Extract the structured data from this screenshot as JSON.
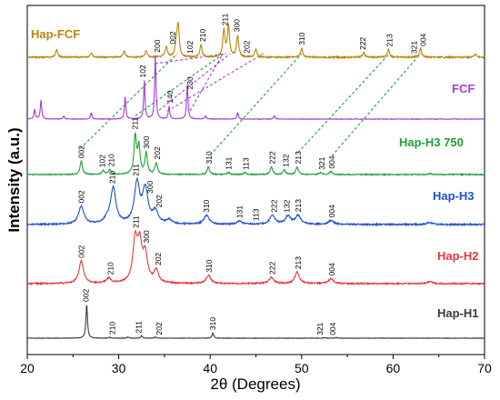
{
  "chart_data": {
    "type": "line",
    "title": "",
    "xlabel": "2θ (Degrees)",
    "ylabel": "Intensity (a.u.)",
    "xlim": [
      20,
      70
    ],
    "xticks": [
      20,
      30,
      40,
      50,
      60,
      70
    ],
    "y_ticks_shown": false,
    "grid": false,
    "legend": "none (series labels printed beside each trace)",
    "series": [
      {
        "name": "Hap-FCF",
        "color": "#b8860b",
        "peaks": [
          {
            "x": 23.2,
            "h": 0.25
          },
          {
            "x": 27.0,
            "h": 0.15
          },
          {
            "x": 30.6,
            "h": 0.2
          },
          {
            "x": 33.0,
            "h": 0.2
          },
          {
            "x": 35.2,
            "h": 0.35
          },
          {
            "x": 36.3,
            "h": 0.4
          },
          {
            "x": 36.5,
            "h": 1.0
          },
          {
            "x": 39.0,
            "h": 0.4
          },
          {
            "x": 41.5,
            "h": 0.85
          },
          {
            "x": 42.0,
            "h": 1.0
          },
          {
            "x": 43.0,
            "h": 0.7
          },
          {
            "x": 45.0,
            "h": 0.25
          },
          {
            "x": 50.0,
            "h": 0.3
          },
          {
            "x": 56.8,
            "h": 0.15
          },
          {
            "x": 59.5,
            "h": 0.25
          },
          {
            "x": 63.0,
            "h": 0.3
          },
          {
            "x": 69.0,
            "h": 0.1
          }
        ],
        "peak_labels": [
          {
            "text": "002",
            "x": 35.9
          },
          {
            "text": "102",
            "x": 37.8
          },
          {
            "text": "210",
            "x": 39.2
          },
          {
            "text": "211",
            "x": 41.6
          },
          {
            "text": "300",
            "x": 42.9
          },
          {
            "text": "202",
            "x": 44.0
          },
          {
            "text": "310",
            "x": 50.0
          },
          {
            "text": "222",
            "x": 56.7
          },
          {
            "text": "213",
            "x": 59.6
          },
          {
            "text": "321",
            "x": 62.3
          },
          {
            "text": "004",
            "x": 63.3
          }
        ]
      },
      {
        "name": "FCF",
        "color": "#a43dd8",
        "peaks": [
          {
            "x": 20.8,
            "h": 0.15
          },
          {
            "x": 21.5,
            "h": 0.3
          },
          {
            "x": 24.0,
            "h": 0.05
          },
          {
            "x": 27.0,
            "h": 0.1
          },
          {
            "x": 30.7,
            "h": 0.35
          },
          {
            "x": 32.8,
            "h": 0.6
          },
          {
            "x": 34.0,
            "h": 1.0
          },
          {
            "x": 35.5,
            "h": 0.2
          },
          {
            "x": 37.5,
            "h": 0.55
          },
          {
            "x": 39.5,
            "h": 0.05
          },
          {
            "x": 43.0,
            "h": 0.1
          },
          {
            "x": 47.0,
            "h": 0.05
          }
        ],
        "peak_labels": [
          {
            "text": "102",
            "x": 32.6
          },
          {
            "text": "200",
            "x": 34.2
          },
          {
            "text": "140",
            "x": 35.6
          },
          {
            "text": "230",
            "x": 37.8
          }
        ]
      },
      {
        "name": "Hap-H3 750",
        "color": "#1e9e3a",
        "peaks": [
          {
            "x": 25.9,
            "h": 0.35
          },
          {
            "x": 28.3,
            "h": 0.1
          },
          {
            "x": 29.0,
            "h": 0.12
          },
          {
            "x": 31.8,
            "h": 1.0
          },
          {
            "x": 32.2,
            "h": 0.7
          },
          {
            "x": 33.0,
            "h": 0.55
          },
          {
            "x": 34.1,
            "h": 0.3
          },
          {
            "x": 39.8,
            "h": 0.2
          },
          {
            "x": 42.0,
            "h": 0.05
          },
          {
            "x": 43.8,
            "h": 0.05
          },
          {
            "x": 46.7,
            "h": 0.2
          },
          {
            "x": 48.1,
            "h": 0.12
          },
          {
            "x": 49.5,
            "h": 0.2
          },
          {
            "x": 52.1,
            "h": 0.05
          },
          {
            "x": 53.2,
            "h": 0.08
          },
          {
            "x": 64.0,
            "h": 0.03
          }
        ],
        "peak_labels": [
          {
            "text": "002",
            "x": 25.9
          },
          {
            "text": "102",
            "x": 28.2
          },
          {
            "text": "210",
            "x": 29.2
          },
          {
            "text": "211",
            "x": 31.8
          },
          {
            "text": "300",
            "x": 33.0
          },
          {
            "text": "202",
            "x": 34.2
          },
          {
            "text": "310",
            "x": 39.9
          },
          {
            "text": "131",
            "x": 42.0
          },
          {
            "text": "113",
            "x": 43.9
          },
          {
            "text": "222",
            "x": 46.8
          },
          {
            "text": "132",
            "x": 48.3
          },
          {
            "text": "213",
            "x": 49.6
          },
          {
            "text": "321",
            "x": 52.2
          },
          {
            "text": "004",
            "x": 53.3
          }
        ]
      },
      {
        "name": "Hap-H3",
        "color": "#1f4fd1",
        "peaks": [
          {
            "x": 25.9,
            "h": 0.45
          },
          {
            "x": 28.7,
            "h": 0.1
          },
          {
            "x": 29.4,
            "h": 0.9
          },
          {
            "x": 32.0,
            "h": 1.0
          },
          {
            "x": 32.9,
            "h": 0.85
          },
          {
            "x": 34.0,
            "h": 0.3
          },
          {
            "x": 35.5,
            "h": 0.1
          },
          {
            "x": 39.6,
            "h": 0.22
          },
          {
            "x": 43.2,
            "h": 0.08
          },
          {
            "x": 46.8,
            "h": 0.22
          },
          {
            "x": 48.5,
            "h": 0.2
          },
          {
            "x": 49.6,
            "h": 0.22
          },
          {
            "x": 53.2,
            "h": 0.1
          },
          {
            "x": 64.0,
            "h": 0.05
          }
        ],
        "peak_labels": [
          {
            "text": "002",
            "x": 25.9
          },
          {
            "text": "210",
            "x": 29.3
          },
          {
            "text": "211",
            "x": 31.9
          },
          {
            "text": "300",
            "x": 33.4
          },
          {
            "text": "202",
            "x": 34.4
          },
          {
            "text": "310",
            "x": 39.6
          },
          {
            "text": "131",
            "x": 43.2
          },
          {
            "text": "113",
            "x": 45.0
          },
          {
            "text": "222",
            "x": 47.0
          },
          {
            "text": "132",
            "x": 48.4
          },
          {
            "text": "213",
            "x": 49.6
          },
          {
            "text": "004",
            "x": 53.3
          }
        ]
      },
      {
        "name": "Hap-H2",
        "color": "#e8363a",
        "peaks": [
          {
            "x": 25.9,
            "h": 0.55
          },
          {
            "x": 28.9,
            "h": 0.12
          },
          {
            "x": 31.8,
            "h": 1.0
          },
          {
            "x": 32.3,
            "h": 0.85
          },
          {
            "x": 32.9,
            "h": 0.65
          },
          {
            "x": 34.1,
            "h": 0.3
          },
          {
            "x": 39.8,
            "h": 0.2
          },
          {
            "x": 46.7,
            "h": 0.15
          },
          {
            "x": 49.5,
            "h": 0.28
          },
          {
            "x": 53.2,
            "h": 0.12
          },
          {
            "x": 64.0,
            "h": 0.05
          }
        ],
        "peak_labels": [
          {
            "text": "002",
            "x": 25.9
          },
          {
            "text": "210",
            "x": 29.1
          },
          {
            "text": "211",
            "x": 31.9
          },
          {
            "text": "300",
            "x": 33.0
          },
          {
            "text": "202",
            "x": 34.3
          },
          {
            "text": "310",
            "x": 39.9
          },
          {
            "text": "222",
            "x": 46.8
          },
          {
            "text": "213",
            "x": 49.6
          },
          {
            "text": "004",
            "x": 53.3
          }
        ]
      },
      {
        "name": "Hap-H1",
        "color": "#3a3a3a",
        "peaks": [
          {
            "x": 26.5,
            "h": 1.0
          },
          {
            "x": 29.0,
            "h": 0.03
          },
          {
            "x": 31.0,
            "h": 0.04
          },
          {
            "x": 32.5,
            "h": 0.08
          },
          {
            "x": 34.0,
            "h": 0.04
          },
          {
            "x": 40.3,
            "h": 0.16
          },
          {
            "x": 52.5,
            "h": 0.02
          },
          {
            "x": 53.8,
            "h": 0.02
          }
        ],
        "peak_labels": [
          {
            "text": "002",
            "x": 26.4
          },
          {
            "text": "210",
            "x": 29.3
          },
          {
            "text": "211",
            "x": 32.2
          },
          {
            "text": "202",
            "x": 34.4
          },
          {
            "text": "310",
            "x": 40.3
          },
          {
            "text": "321",
            "x": 52.0
          },
          {
            "text": "004",
            "x": 53.4
          }
        ]
      }
    ],
    "guide_lines": [
      {
        "color": "#a43dd8",
        "pairs": [
          [
            34.0,
            41.7
          ],
          [
            34.4,
            42.2
          ],
          [
            35.3,
            45.8
          ],
          [
            37.8,
            41.4
          ]
        ]
      },
      {
        "color": "#1e9e3a",
        "pairs": [
          [
            25.8,
            36.4
          ],
          [
            31.8,
            41.5
          ],
          [
            40.0,
            50.0
          ],
          [
            49.6,
            59.6
          ],
          [
            53.3,
            63.0
          ]
        ]
      }
    ]
  }
}
